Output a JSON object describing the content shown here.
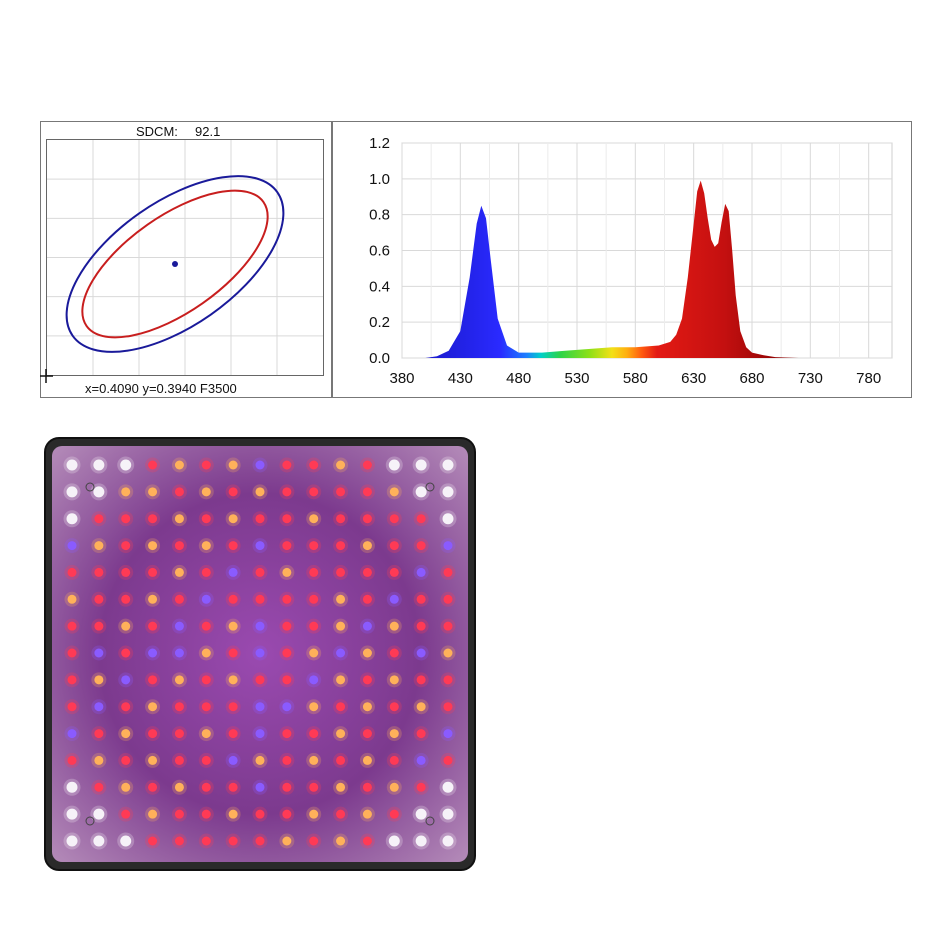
{
  "colors": {
    "blue_ellipse": "#1a1a9a",
    "red_ellipse": "#c81e1e",
    "center_point": "#1a1a9a",
    "grid": "#d9d9d9",
    "panel_border": "#555555",
    "panel_body": "#2a2a2a",
    "led_face_base": "#7a3a8a"
  },
  "sdcm_chart": {
    "title_label": "SDCM:",
    "title_value": "92.1",
    "coordinates_text": "x=0.4090 y=0.3940 F3500",
    "crosshair_icon": "plus-crosshair-icon"
  },
  "chart_data": {
    "type": "area",
    "x": [
      380,
      400,
      410,
      420,
      430,
      438,
      444,
      448,
      452,
      456,
      462,
      470,
      480,
      490,
      500,
      520,
      540,
      560,
      580,
      600,
      610,
      615,
      620,
      625,
      630,
      633,
      636,
      639,
      642,
      645,
      648,
      651,
      654,
      657,
      660,
      663,
      666,
      670,
      675,
      680,
      690,
      700,
      720
    ],
    "y": [
      0,
      0,
      0.01,
      0.04,
      0.15,
      0.45,
      0.75,
      0.85,
      0.78,
      0.55,
      0.22,
      0.07,
      0.03,
      0.03,
      0.03,
      0.04,
      0.05,
      0.06,
      0.06,
      0.07,
      0.09,
      0.13,
      0.22,
      0.45,
      0.75,
      0.93,
      0.99,
      0.92,
      0.78,
      0.66,
      0.62,
      0.64,
      0.76,
      0.86,
      0.82,
      0.6,
      0.35,
      0.15,
      0.06,
      0.03,
      0.015,
      0.005,
      0
    ],
    "x_ticks": [
      "380",
      "430",
      "480",
      "530",
      "580",
      "630",
      "680",
      "730",
      "780"
    ],
    "y_ticks": [
      "0.0",
      "0.2",
      "0.4",
      "0.6",
      "0.8",
      "1.0",
      "1.2"
    ],
    "xlim": [
      380,
      800
    ],
    "ylim": [
      0,
      1.2
    ],
    "grid": true,
    "fill": "spectral-gradient",
    "title": "",
    "xlabel": "",
    "ylabel": ""
  },
  "led_panel": {
    "rows": 15,
    "cols": 15,
    "led_colors": {
      "white": "#f6f2f8",
      "red": "#ff3a55",
      "orange": "#ffb15a",
      "blue": "#8a5bff"
    }
  }
}
